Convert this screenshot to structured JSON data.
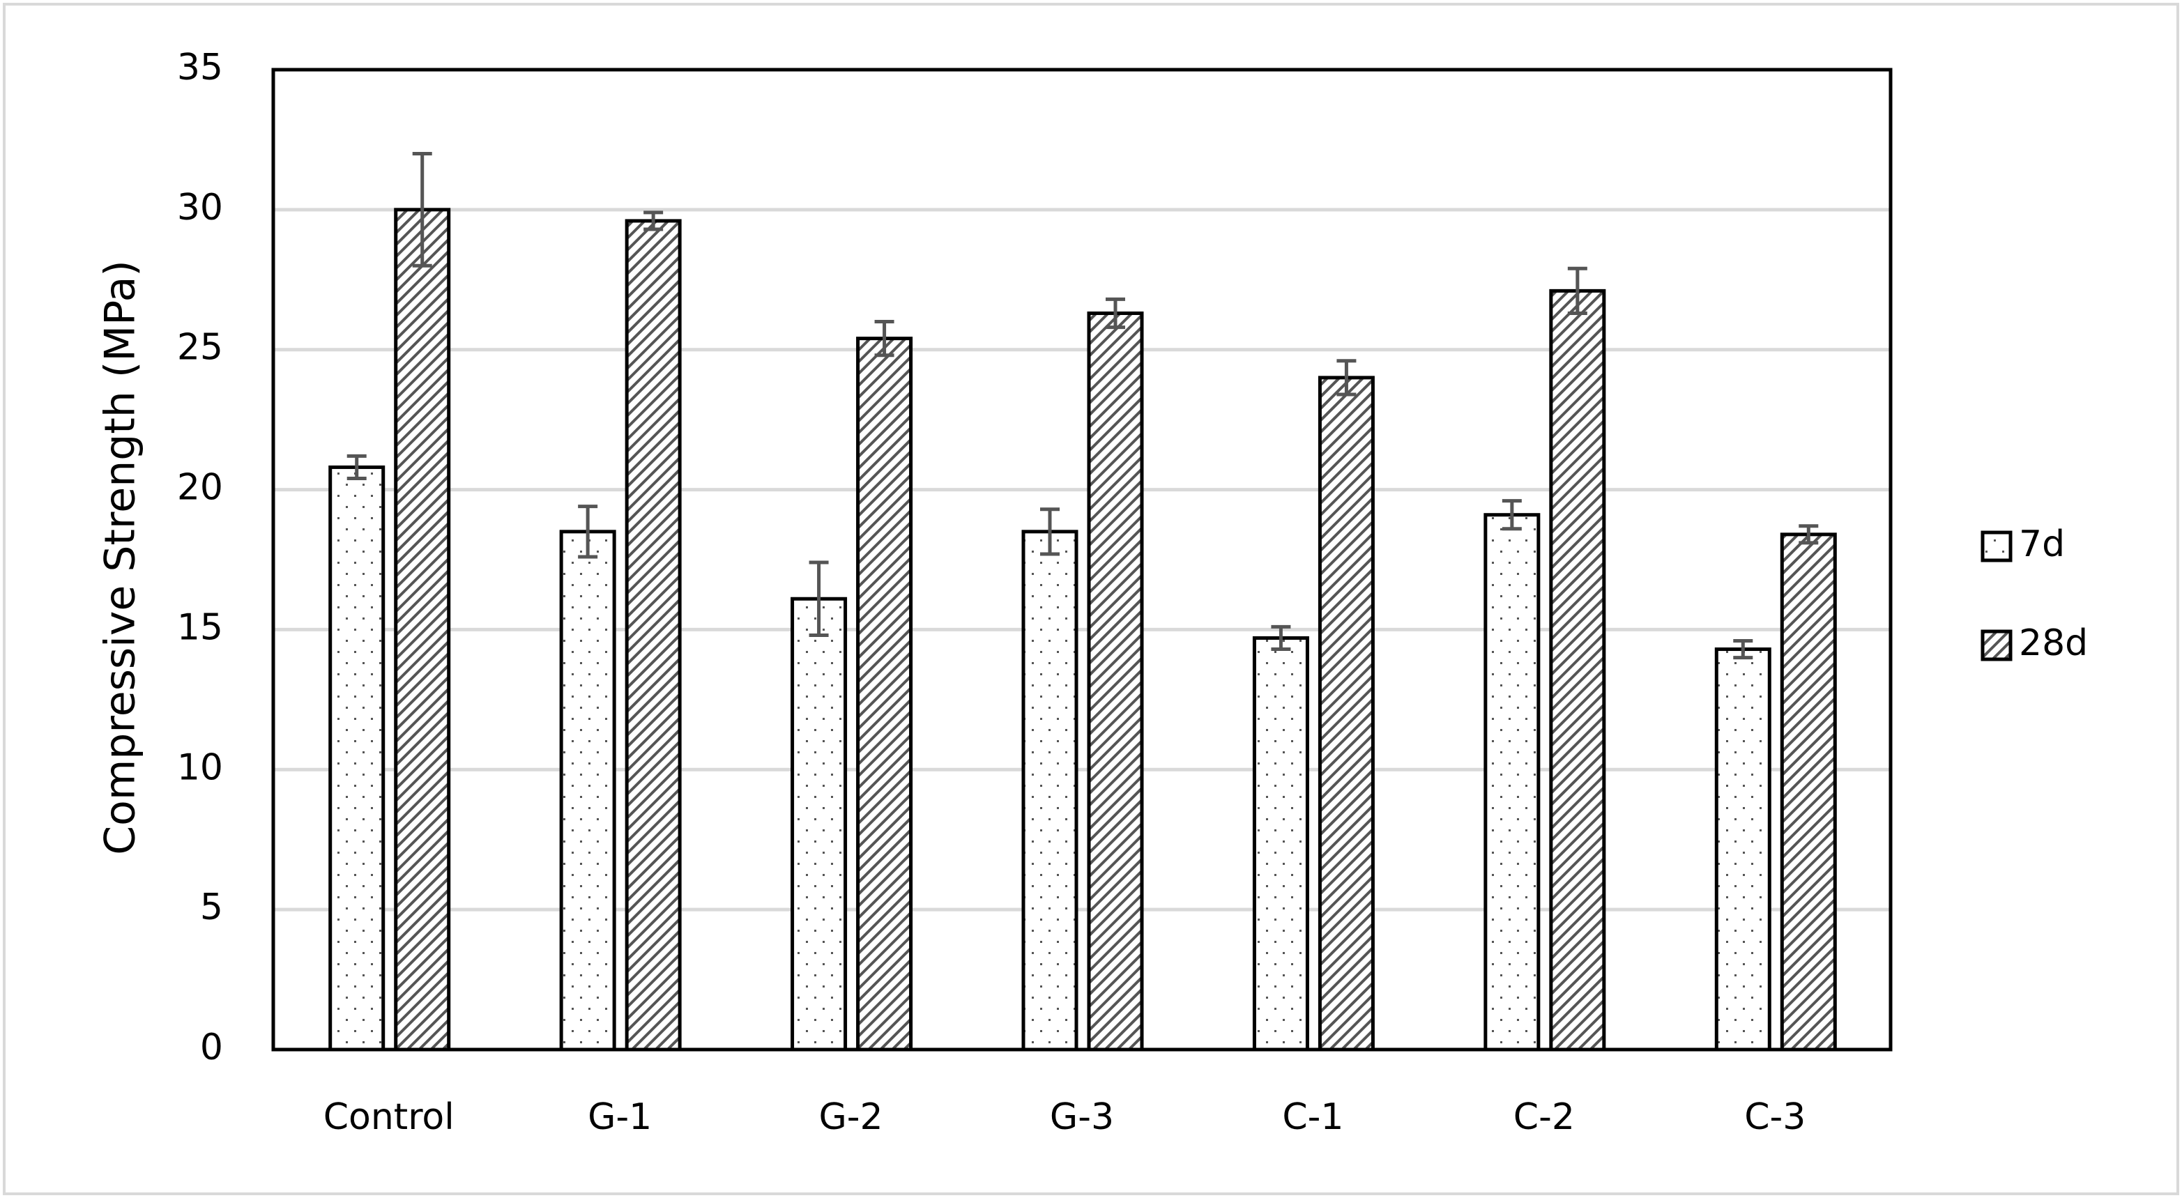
{
  "chart_data": {
    "type": "bar",
    "y_label": "Compressive Strength (MPa)",
    "categories": [
      "Control",
      "G-1",
      "G-2",
      "G-3",
      "C-1",
      "C-2",
      "C-3"
    ],
    "series": [
      {
        "name": "7d",
        "pattern": "dots",
        "color": "#555555",
        "values": [
          20.8,
          18.5,
          16.1,
          18.5,
          14.7,
          19.1,
          14.3
        ],
        "errors": [
          0.4,
          0.9,
          1.3,
          0.8,
          0.4,
          0.5,
          0.3
        ]
      },
      {
        "name": "28d",
        "pattern": "hatch",
        "color": "#555555",
        "values": [
          30.0,
          29.6,
          25.4,
          26.3,
          24.0,
          27.1,
          18.4
        ],
        "errors": [
          2.0,
          0.3,
          0.6,
          0.5,
          0.6,
          0.8,
          0.3
        ]
      }
    ],
    "ylim": [
      0,
      35
    ],
    "yticks": [
      0,
      5,
      10,
      15,
      20,
      25,
      30,
      35
    ],
    "grid": true,
    "legend": "right"
  }
}
